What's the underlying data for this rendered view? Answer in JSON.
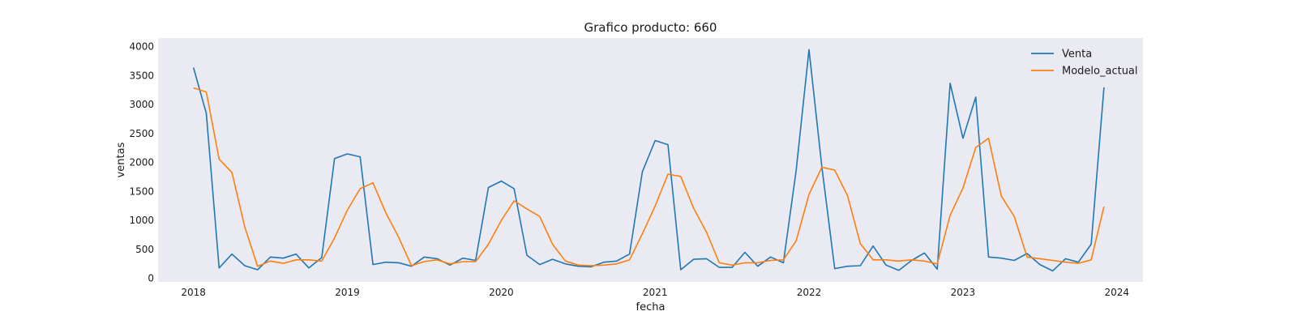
{
  "chart_data": {
    "type": "line",
    "title": "Grafico producto: 660",
    "xlabel": "fecha",
    "ylabel": "ventas",
    "xlim": [
      2017.77,
      2024.17
    ],
    "ylim": [
      -60,
      4150
    ],
    "yticks": [
      0,
      500,
      1000,
      1500,
      2000,
      2500,
      3000,
      3500,
      4000
    ],
    "xticks": [
      2018,
      2019,
      2020,
      2021,
      2022,
      2023,
      2024
    ],
    "grid": false,
    "legend_position": "top-right",
    "colors": {
      "plot_background": "#eaeaf2",
      "Venta": "#1f77b4",
      "Modelo_actual": "#ff7f0e"
    },
    "x_start_year": 2018,
    "months": 72,
    "series": [
      {
        "name": "Venta",
        "values": [
          3640,
          2850,
          180,
          420,
          220,
          150,
          370,
          350,
          420,
          180,
          360,
          2070,
          2150,
          2100,
          240,
          280,
          270,
          210,
          370,
          340,
          230,
          350,
          310,
          1570,
          1680,
          1550,
          400,
          240,
          330,
          250,
          210,
          200,
          280,
          300,
          420,
          1840,
          2380,
          2310,
          150,
          330,
          340,
          190,
          190,
          450,
          210,
          370,
          270,
          1870,
          3950,
          1920,
          170,
          210,
          220,
          560,
          230,
          140,
          310,
          440,
          160,
          3370,
          2420,
          3130,
          370,
          350,
          310,
          430,
          240,
          130,
          340,
          280,
          590,
          3300
        ]
      },
      {
        "name": "Modelo_actual",
        "values": [
          3290,
          3220,
          2060,
          1830,
          890,
          210,
          300,
          260,
          320,
          320,
          300,
          700,
          1180,
          1550,
          1650,
          1130,
          710,
          220,
          290,
          320,
          250,
          290,
          290,
          590,
          1000,
          1340,
          1200,
          1070,
          590,
          300,
          230,
          220,
          230,
          250,
          320,
          770,
          1250,
          1800,
          1760,
          1210,
          800,
          270,
          230,
          270,
          270,
          310,
          320,
          650,
          1450,
          1920,
          1870,
          1430,
          600,
          320,
          320,
          300,
          320,
          300,
          250,
          1090,
          1560,
          2260,
          2420,
          1420,
          1070,
          370,
          340,
          310,
          280,
          260,
          320,
          1240
        ]
      }
    ]
  }
}
